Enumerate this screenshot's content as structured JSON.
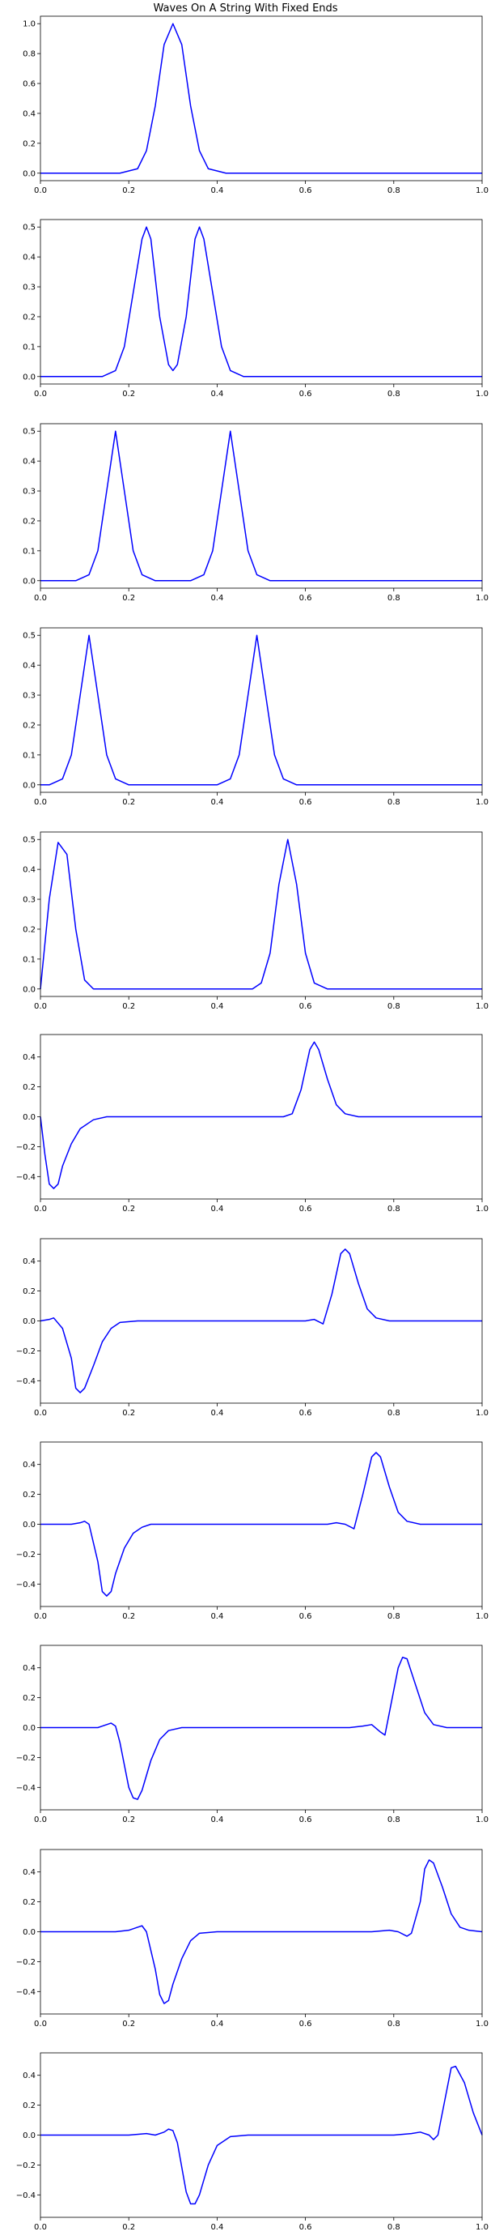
{
  "title": "Waves On A String With Fixed Ends",
  "chart_data": [
    {
      "type": "line",
      "color": "#0000ff",
      "xlim": [
        0.0,
        1.0
      ],
      "ylim": [
        -0.05,
        1.05
      ],
      "x_ticks": [
        0.0,
        0.2,
        0.4,
        0.6,
        0.8,
        1.0
      ],
      "x_tick_labels": [
        "0.0",
        "0.2",
        "0.4",
        "0.6",
        "0.8",
        "1.0"
      ],
      "y_ticks": [
        0.0,
        0.2,
        0.4,
        0.6,
        0.8,
        1.0
      ],
      "y_tick_labels": [
        "0.0",
        "0.2",
        "0.4",
        "0.6",
        "0.8",
        "1.0"
      ],
      "x": [
        0.0,
        0.18,
        0.22,
        0.24,
        0.26,
        0.28,
        0.3,
        0.32,
        0.34,
        0.36,
        0.38,
        0.42,
        1.0
      ],
      "y": [
        0.0,
        0.0,
        0.03,
        0.15,
        0.45,
        0.86,
        1.0,
        0.86,
        0.45,
        0.15,
        0.03,
        0.0,
        0.0
      ]
    },
    {
      "type": "line",
      "color": "#0000ff",
      "xlim": [
        0.0,
        1.0
      ],
      "ylim": [
        -0.025,
        0.525
      ],
      "x_ticks": [
        0.0,
        0.2,
        0.4,
        0.6,
        0.8,
        1.0
      ],
      "x_tick_labels": [
        "0.0",
        "0.2",
        "0.4",
        "0.6",
        "0.8",
        "1.0"
      ],
      "y_ticks": [
        0.0,
        0.1,
        0.2,
        0.3,
        0.4,
        0.5
      ],
      "y_tick_labels": [
        "0.0",
        "0.1",
        "0.2",
        "0.3",
        "0.4",
        "0.5"
      ],
      "x": [
        0.0,
        0.14,
        0.17,
        0.19,
        0.21,
        0.23,
        0.24,
        0.25,
        0.27,
        0.29,
        0.3,
        0.31,
        0.33,
        0.35,
        0.36,
        0.37,
        0.39,
        0.41,
        0.43,
        0.46,
        1.0
      ],
      "y": [
        0.0,
        0.0,
        0.02,
        0.1,
        0.28,
        0.46,
        0.5,
        0.46,
        0.2,
        0.04,
        0.02,
        0.04,
        0.2,
        0.46,
        0.5,
        0.46,
        0.28,
        0.1,
        0.02,
        0.0,
        0.0
      ]
    },
    {
      "type": "line",
      "color": "#0000ff",
      "xlim": [
        0.0,
        1.0
      ],
      "ylim": [
        -0.025,
        0.525
      ],
      "x_ticks": [
        0.0,
        0.2,
        0.4,
        0.6,
        0.8,
        1.0
      ],
      "x_tick_labels": [
        "0.0",
        "0.2",
        "0.4",
        "0.6",
        "0.8",
        "1.0"
      ],
      "y_ticks": [
        0.0,
        0.1,
        0.2,
        0.3,
        0.4,
        0.5
      ],
      "y_tick_labels": [
        "0.0",
        "0.1",
        "0.2",
        "0.3",
        "0.4",
        "0.5"
      ],
      "x": [
        0.0,
        0.08,
        0.11,
        0.13,
        0.15,
        0.17,
        0.19,
        0.21,
        0.23,
        0.26,
        0.34,
        0.37,
        0.39,
        0.41,
        0.43,
        0.45,
        0.47,
        0.49,
        0.52,
        1.0
      ],
      "y": [
        0.0,
        0.0,
        0.02,
        0.1,
        0.3,
        0.5,
        0.3,
        0.1,
        0.02,
        0.0,
        0.0,
        0.02,
        0.1,
        0.3,
        0.5,
        0.3,
        0.1,
        0.02,
        0.0,
        0.0
      ]
    },
    {
      "type": "line",
      "color": "#0000ff",
      "xlim": [
        0.0,
        1.0
      ],
      "ylim": [
        -0.025,
        0.525
      ],
      "x_ticks": [
        0.0,
        0.2,
        0.4,
        0.6,
        0.8,
        1.0
      ],
      "x_tick_labels": [
        "0.0",
        "0.2",
        "0.4",
        "0.6",
        "0.8",
        "1.0"
      ],
      "y_ticks": [
        0.0,
        0.1,
        0.2,
        0.3,
        0.4,
        0.5
      ],
      "y_tick_labels": [
        "0.0",
        "0.1",
        "0.2",
        "0.3",
        "0.4",
        "0.5"
      ],
      "x": [
        0.0,
        0.02,
        0.05,
        0.07,
        0.09,
        0.11,
        0.13,
        0.15,
        0.17,
        0.2,
        0.4,
        0.43,
        0.45,
        0.47,
        0.49,
        0.51,
        0.53,
        0.55,
        0.58,
        1.0
      ],
      "y": [
        0.0,
        0.0,
        0.02,
        0.1,
        0.3,
        0.5,
        0.3,
        0.1,
        0.02,
        0.0,
        0.0,
        0.02,
        0.1,
        0.3,
        0.5,
        0.3,
        0.1,
        0.02,
        0.0,
        0.0
      ]
    },
    {
      "type": "line",
      "color": "#0000ff",
      "xlim": [
        0.0,
        1.0
      ],
      "ylim": [
        -0.025,
        0.525
      ],
      "x_ticks": [
        0.0,
        0.2,
        0.4,
        0.6,
        0.8,
        1.0
      ],
      "x_tick_labels": [
        "0.0",
        "0.2",
        "0.4",
        "0.6",
        "0.8",
        "1.0"
      ],
      "y_ticks": [
        0.0,
        0.1,
        0.2,
        0.3,
        0.4,
        0.5
      ],
      "y_tick_labels": [
        "0.0",
        "0.1",
        "0.2",
        "0.3",
        "0.4",
        "0.5"
      ],
      "x": [
        0.0,
        0.02,
        0.04,
        0.06,
        0.08,
        0.1,
        0.12,
        0.14,
        0.48,
        0.5,
        0.52,
        0.54,
        0.56,
        0.58,
        0.6,
        0.62,
        0.65,
        1.0
      ],
      "y": [
        0.0,
        0.3,
        0.49,
        0.45,
        0.2,
        0.03,
        0.0,
        0.0,
        0.0,
        0.02,
        0.12,
        0.35,
        0.5,
        0.35,
        0.12,
        0.02,
        0.0,
        0.0
      ]
    },
    {
      "type": "line",
      "color": "#0000ff",
      "xlim": [
        0.0,
        1.0
      ],
      "ylim": [
        -0.55,
        0.55
      ],
      "x_ticks": [
        0.0,
        0.2,
        0.4,
        0.6,
        0.8,
        1.0
      ],
      "x_tick_labels": [
        "0.0",
        "0.2",
        "0.4",
        "0.6",
        "0.8",
        "1.0"
      ],
      "y_ticks": [
        -0.4,
        -0.2,
        0.0,
        0.2,
        0.4
      ],
      "y_tick_labels": [
        "−0.4",
        "−0.2",
        "0.0",
        "0.2",
        "0.4"
      ],
      "x": [
        0.0,
        0.01,
        0.02,
        0.03,
        0.04,
        0.05,
        0.07,
        0.09,
        0.12,
        0.15,
        0.2,
        0.55,
        0.57,
        0.59,
        0.61,
        0.62,
        0.63,
        0.65,
        0.67,
        0.69,
        0.72,
        1.0
      ],
      "y": [
        0.0,
        -0.25,
        -0.45,
        -0.48,
        -0.45,
        -0.33,
        -0.18,
        -0.08,
        -0.02,
        0.0,
        0.0,
        0.0,
        0.02,
        0.18,
        0.45,
        0.5,
        0.45,
        0.25,
        0.08,
        0.02,
        0.0,
        0.0
      ]
    },
    {
      "type": "line",
      "color": "#0000ff",
      "xlim": [
        0.0,
        1.0
      ],
      "ylim": [
        -0.55,
        0.55
      ],
      "x_ticks": [
        0.0,
        0.2,
        0.4,
        0.6,
        0.8,
        1.0
      ],
      "x_tick_labels": [
        "0.0",
        "0.2",
        "0.4",
        "0.6",
        "0.8",
        "1.0"
      ],
      "y_ticks": [
        -0.4,
        -0.2,
        0.0,
        0.2,
        0.4
      ],
      "y_tick_labels": [
        "−0.4",
        "−0.2",
        "0.0",
        "0.2",
        "0.4"
      ],
      "x": [
        0.0,
        0.02,
        0.03,
        0.05,
        0.07,
        0.08,
        0.09,
        0.1,
        0.12,
        0.14,
        0.16,
        0.18,
        0.22,
        0.6,
        0.62,
        0.64,
        0.66,
        0.68,
        0.69,
        0.7,
        0.72,
        0.74,
        0.76,
        0.79,
        1.0
      ],
      "y": [
        0.0,
        0.01,
        0.02,
        -0.05,
        -0.25,
        -0.45,
        -0.48,
        -0.45,
        -0.3,
        -0.14,
        -0.05,
        -0.01,
        0.0,
        0.0,
        0.01,
        -0.02,
        0.18,
        0.45,
        0.48,
        0.45,
        0.25,
        0.08,
        0.02,
        0.0,
        0.0
      ]
    },
    {
      "type": "line",
      "color": "#0000ff",
      "xlim": [
        0.0,
        1.0
      ],
      "ylim": [
        -0.55,
        0.55
      ],
      "x_ticks": [
        0.0,
        0.2,
        0.4,
        0.6,
        0.8,
        1.0
      ],
      "x_tick_labels": [
        "0.0",
        "0.2",
        "0.4",
        "0.6",
        "0.8",
        "1.0"
      ],
      "y_ticks": [
        -0.4,
        -0.2,
        0.0,
        0.2,
        0.4
      ],
      "y_tick_labels": [
        "−0.4",
        "−0.2",
        "0.0",
        "0.2",
        "0.4"
      ],
      "x": [
        0.0,
        0.07,
        0.09,
        0.1,
        0.11,
        0.13,
        0.14,
        0.15,
        0.16,
        0.17,
        0.19,
        0.21,
        0.23,
        0.25,
        0.28,
        0.65,
        0.67,
        0.69,
        0.71,
        0.73,
        0.75,
        0.76,
        0.77,
        0.79,
        0.81,
        0.83,
        0.86,
        1.0
      ],
      "y": [
        0.0,
        0.0,
        0.01,
        0.02,
        0.0,
        -0.25,
        -0.45,
        -0.48,
        -0.45,
        -0.33,
        -0.16,
        -0.06,
        -0.02,
        0.0,
        0.0,
        0.0,
        0.01,
        0.0,
        -0.03,
        0.2,
        0.45,
        0.48,
        0.45,
        0.25,
        0.08,
        0.02,
        0.0,
        0.0
      ]
    },
    {
      "type": "line",
      "color": "#0000ff",
      "xlim": [
        0.0,
        1.0
      ],
      "ylim": [
        -0.55,
        0.55
      ],
      "x_ticks": [
        0.0,
        0.2,
        0.4,
        0.6,
        0.8,
        1.0
      ],
      "x_tick_labels": [
        "0.0",
        "0.2",
        "0.4",
        "0.6",
        "0.8",
        "1.0"
      ],
      "y_ticks": [
        -0.4,
        -0.2,
        0.0,
        0.2,
        0.4
      ],
      "y_tick_labels": [
        "−0.4",
        "−0.2",
        "0.0",
        "0.2",
        "0.4"
      ],
      "x": [
        0.0,
        0.1,
        0.13,
        0.15,
        0.16,
        0.17,
        0.18,
        0.2,
        0.21,
        0.22,
        0.23,
        0.25,
        0.27,
        0.29,
        0.32,
        0.35,
        0.7,
        0.73,
        0.75,
        0.77,
        0.78,
        0.79,
        0.81,
        0.82,
        0.83,
        0.85,
        0.87,
        0.89,
        0.92,
        1.0
      ],
      "y": [
        0.0,
        0.0,
        0.0,
        0.02,
        0.03,
        0.01,
        -0.1,
        -0.4,
        -0.47,
        -0.48,
        -0.42,
        -0.22,
        -0.08,
        -0.02,
        0.0,
        0.0,
        0.0,
        0.01,
        0.02,
        -0.03,
        -0.05,
        0.1,
        0.4,
        0.47,
        0.46,
        0.28,
        0.1,
        0.02,
        0.0,
        0.0
      ]
    },
    {
      "type": "line",
      "color": "#0000ff",
      "xlim": [
        0.0,
        1.0
      ],
      "ylim": [
        -0.55,
        0.55
      ],
      "x_ticks": [
        0.0,
        0.2,
        0.4,
        0.6,
        0.8,
        1.0
      ],
      "x_tick_labels": [
        "0.0",
        "0.2",
        "0.4",
        "0.6",
        "0.8",
        "1.0"
      ],
      "y_ticks": [
        -0.4,
        -0.2,
        0.0,
        0.2,
        0.4
      ],
      "y_tick_labels": [
        "−0.4",
        "−0.2",
        "0.0",
        "0.2",
        "0.4"
      ],
      "x": [
        0.0,
        0.17,
        0.2,
        0.22,
        0.23,
        0.24,
        0.26,
        0.27,
        0.28,
        0.29,
        0.3,
        0.32,
        0.34,
        0.36,
        0.4,
        0.75,
        0.79,
        0.81,
        0.83,
        0.84,
        0.86,
        0.87,
        0.88,
        0.89,
        0.91,
        0.93,
        0.95,
        0.97,
        1.0
      ],
      "y": [
        0.0,
        0.0,
        0.01,
        0.03,
        0.04,
        0.0,
        -0.25,
        -0.42,
        -0.48,
        -0.46,
        -0.35,
        -0.18,
        -0.06,
        -0.01,
        0.0,
        0.0,
        0.01,
        0.0,
        -0.03,
        -0.01,
        0.2,
        0.42,
        0.48,
        0.46,
        0.3,
        0.12,
        0.03,
        0.01,
        0.0
      ]
    },
    {
      "type": "line",
      "color": "#0000ff",
      "xlim": [
        0.0,
        1.0
      ],
      "ylim": [
        -0.55,
        0.55
      ],
      "x_ticks": [
        0.0,
        0.2,
        0.4,
        0.6,
        0.8,
        1.0
      ],
      "x_tick_labels": [
        "0.0",
        "0.2",
        "0.4",
        "0.6",
        "0.8",
        "1.0"
      ],
      "y_ticks": [
        -0.4,
        -0.2,
        0.0,
        0.2,
        0.4
      ],
      "y_tick_labels": [
        "−0.4",
        "−0.2",
        "0.0",
        "0.2",
        "0.4"
      ],
      "x": [
        0.0,
        0.2,
        0.24,
        0.26,
        0.28,
        0.29,
        0.3,
        0.31,
        0.33,
        0.34,
        0.35,
        0.36,
        0.38,
        0.4,
        0.43,
        0.47,
        0.8,
        0.84,
        0.86,
        0.88,
        0.89,
        0.9,
        0.92,
        0.93,
        0.94,
        0.96,
        0.98,
        1.0
      ],
      "y": [
        0.0,
        0.0,
        0.01,
        0.0,
        0.02,
        0.04,
        0.03,
        -0.05,
        -0.38,
        -0.46,
        -0.46,
        -0.4,
        -0.2,
        -0.07,
        -0.01,
        0.0,
        0.0,
        0.01,
        0.02,
        0.0,
        -0.03,
        0.0,
        0.3,
        0.45,
        0.46,
        0.35,
        0.15,
        0.0
      ]
    }
  ]
}
